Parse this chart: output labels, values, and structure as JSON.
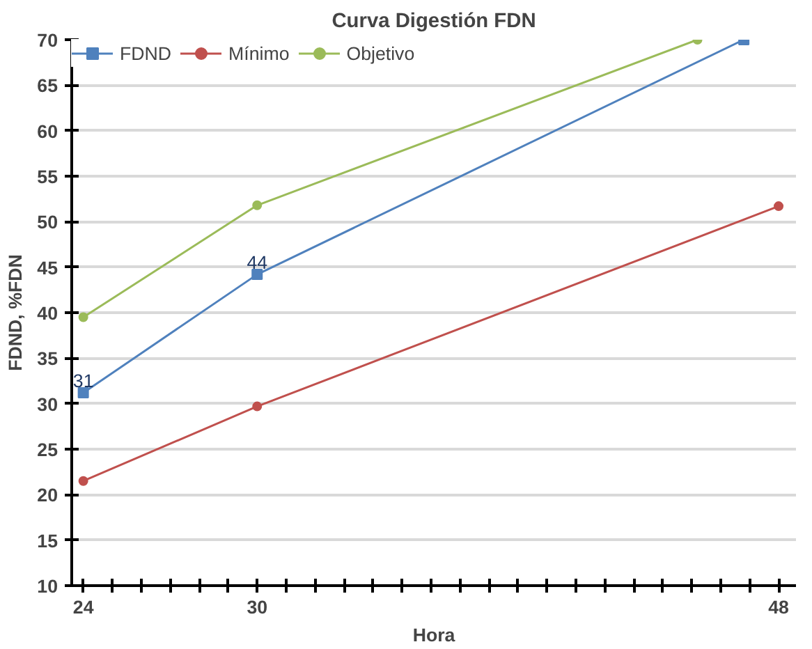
{
  "chart_data": {
    "type": "line",
    "title": "Curva Digestión FDN",
    "xlabel": "Hora",
    "ylabel": "FDND, %FDN",
    "x": [
      24,
      30,
      48
    ],
    "series": [
      {
        "name": "FDND",
        "color": "#4f81bd",
        "x": [
          24,
          30,
          46.8
        ],
        "values": [
          31.2,
          44.2,
          70
        ],
        "marker": "square",
        "value_labels": [
          "31",
          "44",
          null
        ]
      },
      {
        "name": "Mínimo",
        "color": "#c0504d",
        "values": [
          21.5,
          29.7,
          51.7
        ],
        "marker": "circle"
      },
      {
        "name": "Objetivo",
        "color": "#9bbb59",
        "x": [
          24,
          30,
          45.2
        ],
        "values": [
          39.5,
          51.8,
          70
        ],
        "marker": "circle"
      }
    ],
    "xlim": [
      23.6,
      48.6
    ],
    "xticks": [
      24,
      {
        "value": 25,
        "label": null
      },
      {
        "value": 26,
        "label": null
      },
      {
        "value": 27,
        "label": null
      },
      {
        "value": 28,
        "label": null
      },
      {
        "value": 29,
        "label": null
      },
      30,
      {
        "value": 31,
        "label": null
      },
      {
        "value": 32,
        "label": null
      },
      {
        "value": 33,
        "label": null
      },
      {
        "value": 34,
        "label": null
      },
      {
        "value": 35,
        "label": null
      },
      {
        "value": 36,
        "label": null
      },
      {
        "value": 37,
        "label": null
      },
      {
        "value": 38,
        "label": null
      },
      {
        "value": 39,
        "label": null
      },
      {
        "value": 40,
        "label": null
      },
      {
        "value": 41,
        "label": null
      },
      {
        "value": 42,
        "label": null
      },
      {
        "value": 43,
        "label": null
      },
      {
        "value": 44,
        "label": null
      },
      {
        "value": 45,
        "label": null
      },
      {
        "value": 46,
        "label": null
      },
      {
        "value": 47,
        "label": null
      },
      48
    ],
    "ylim": [
      10,
      70
    ],
    "yticks": [
      10,
      15,
      20,
      25,
      30,
      35,
      40,
      45,
      50,
      55,
      60,
      65,
      70
    ],
    "grid": "y",
    "legend": "top left",
    "line_style": "solid"
  }
}
